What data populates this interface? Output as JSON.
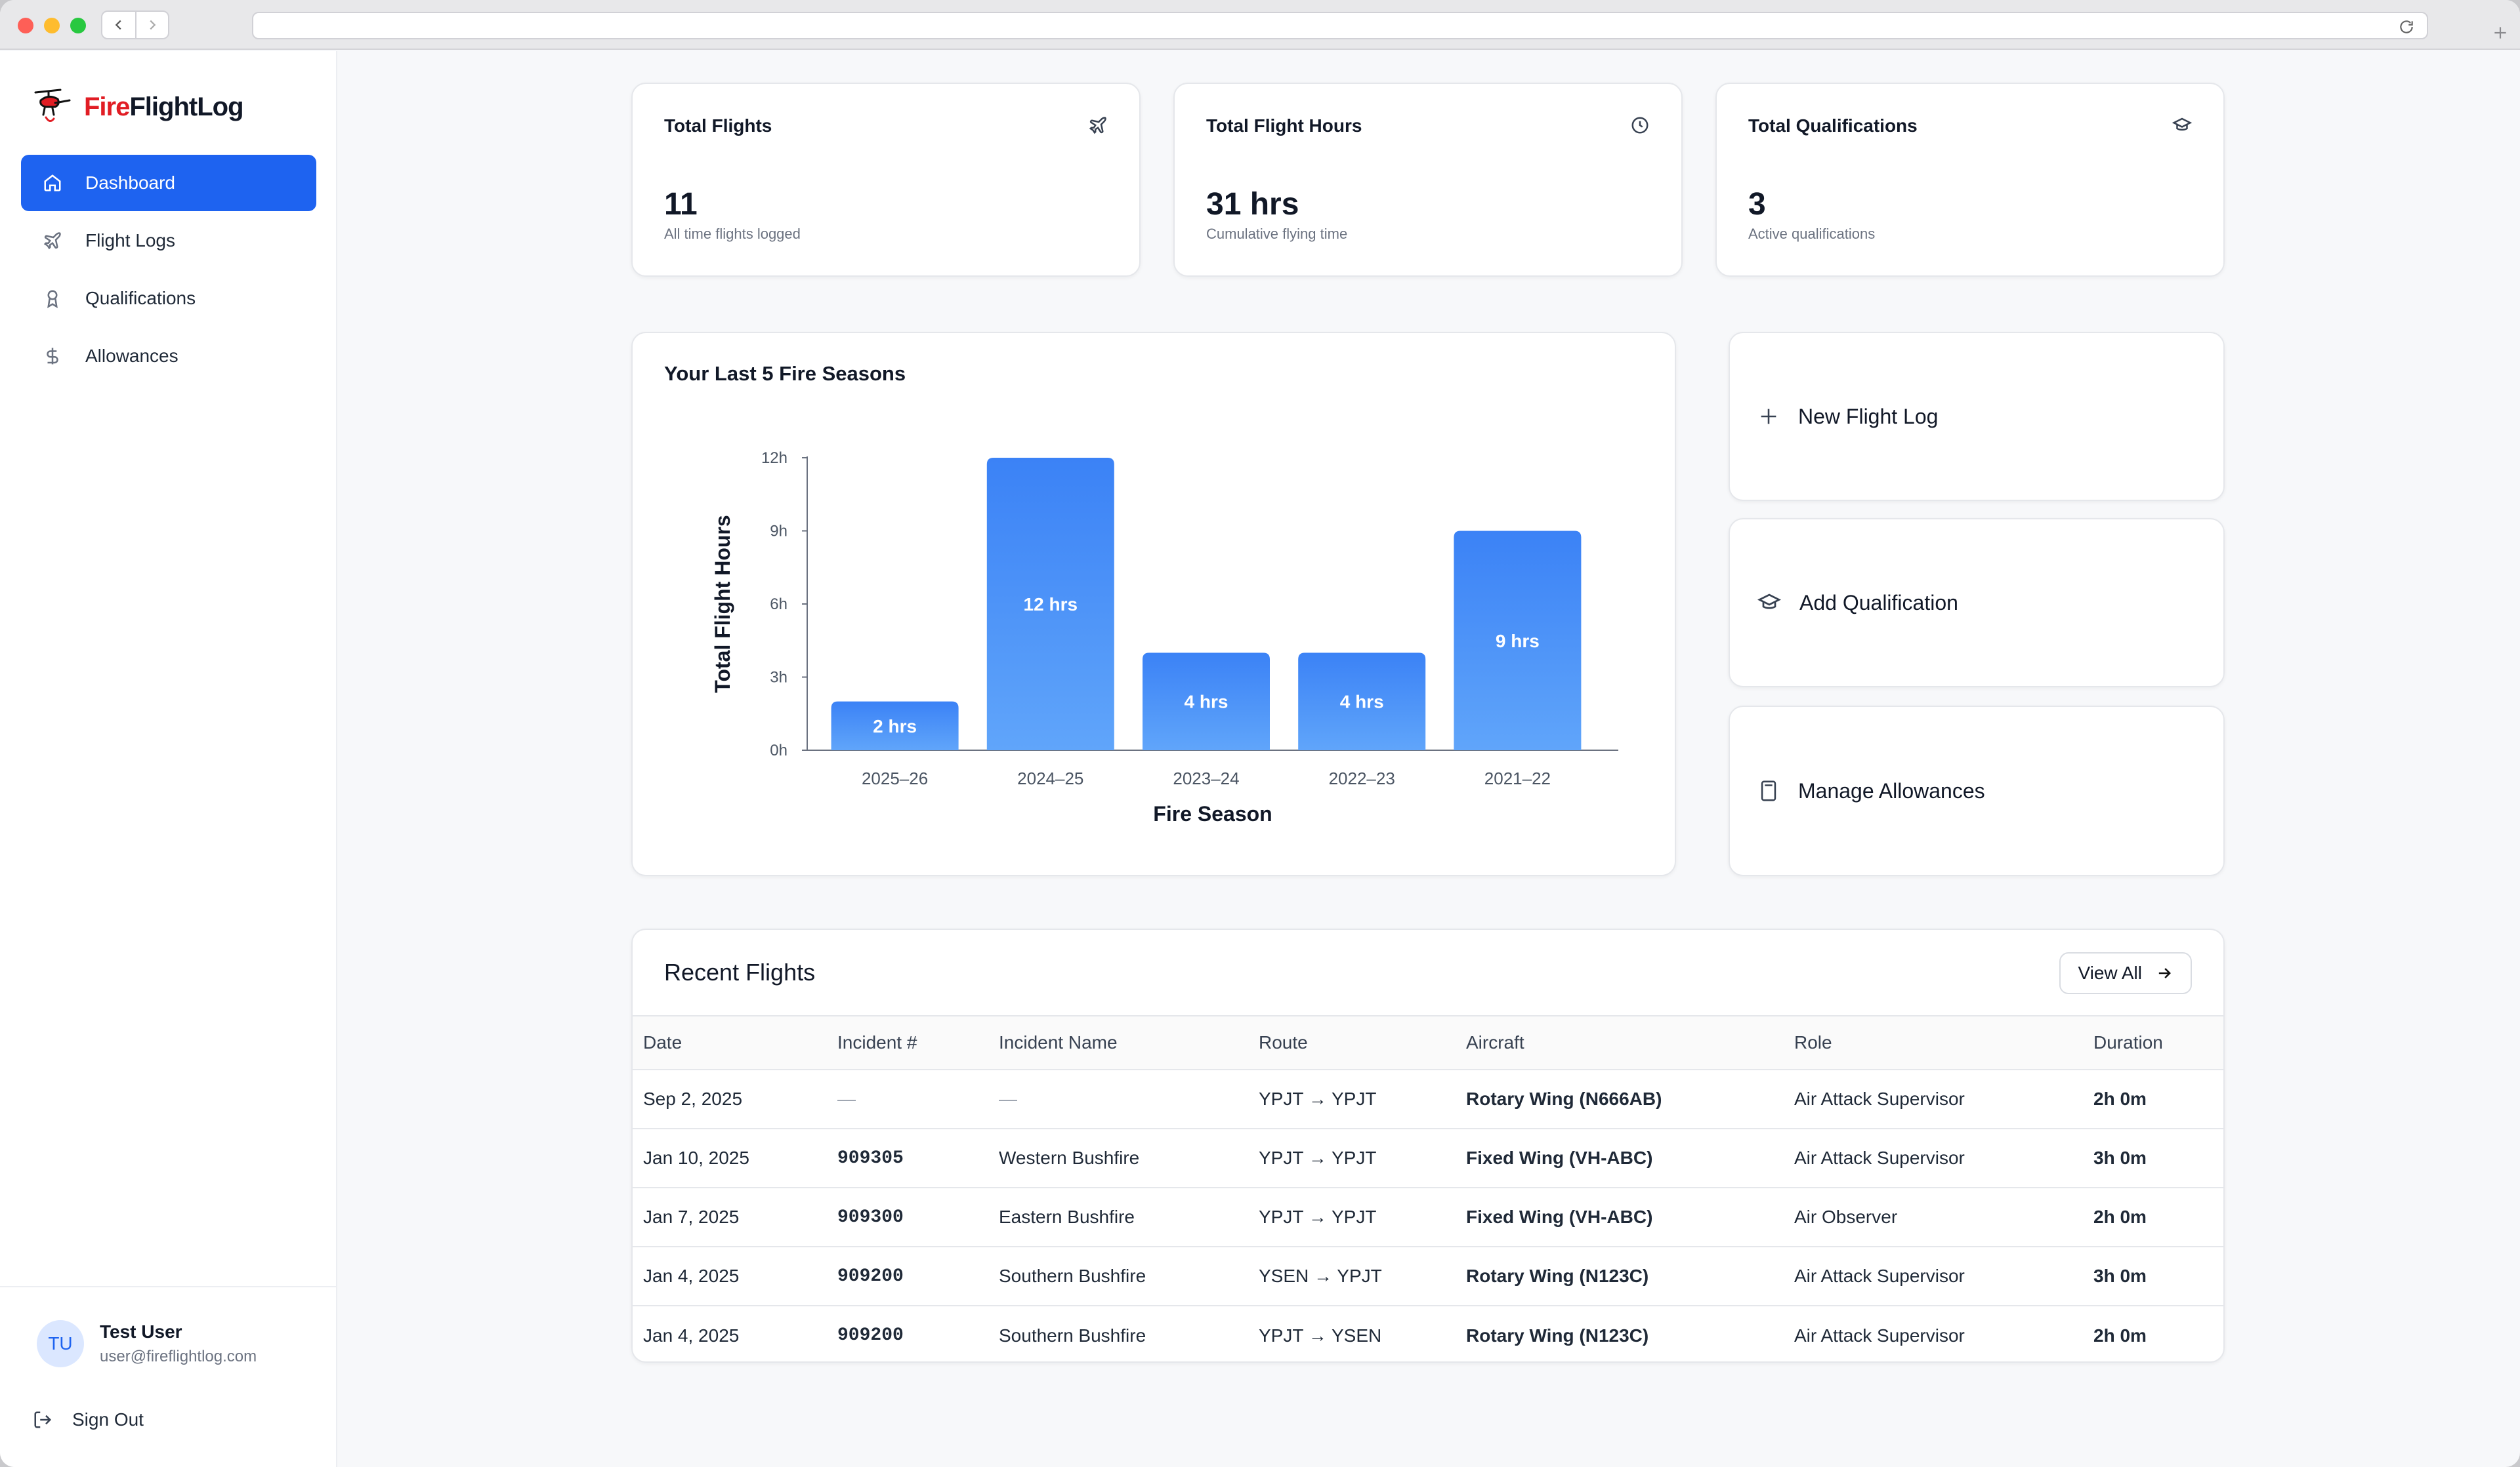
{
  "app": {
    "brand_fire": "Fire",
    "brand_rest": "FlightLog"
  },
  "sidebar": {
    "items": [
      {
        "label": "Dashboard",
        "icon": "home-icon",
        "active": true
      },
      {
        "label": "Flight Logs",
        "icon": "plane-icon"
      },
      {
        "label": "Qualifications",
        "icon": "award-icon"
      },
      {
        "label": "Allowances",
        "icon": "dollar-icon"
      }
    ],
    "user": {
      "initials": "TU",
      "name": "Test User",
      "email": "user@fireflightlog.com"
    },
    "sign_out": "Sign Out"
  },
  "stats": [
    {
      "label": "Total Flights",
      "value": "11",
      "sub": "All time flights logged",
      "icon": "plane-icon"
    },
    {
      "label": "Total Flight Hours",
      "value": "31 hrs",
      "sub": "Cumulative flying time",
      "icon": "clock-icon"
    },
    {
      "label": "Total Qualifications",
      "value": "3",
      "sub": "Active qualifications",
      "icon": "graduation-cap-icon"
    }
  ],
  "chart": {
    "title": "Your Last 5 Fire Seasons"
  },
  "chart_data": {
    "type": "bar",
    "categories": [
      "2025–26",
      "2024–25",
      "2023–24",
      "2022–23",
      "2021–22"
    ],
    "values": [
      2,
      12,
      4,
      4,
      9
    ],
    "data_labels": [
      "2 hrs",
      "12 hrs",
      "4 hrs",
      "4 hrs",
      "9 hrs"
    ],
    "xlabel": "Fire Season",
    "ylabel": "Total Flight Hours",
    "ylim": [
      0,
      12
    ],
    "yticks": [
      0,
      3,
      6,
      9,
      12
    ],
    "ytick_labels": [
      "0h",
      "3h",
      "6h",
      "9h",
      "12h"
    ],
    "bar_color": "#3b82f6",
    "grid": false
  },
  "actions": [
    {
      "label": "New Flight Log",
      "icon": "plus-icon"
    },
    {
      "label": "Add Qualification",
      "icon": "graduation-cap-icon"
    },
    {
      "label": "Manage Allowances",
      "icon": "calculator-icon"
    }
  ],
  "recent": {
    "title": "Recent Flights",
    "view_all": "View All",
    "columns": [
      "Date",
      "Incident #",
      "Incident Name",
      "Route",
      "Aircraft",
      "Role",
      "Duration"
    ],
    "rows": [
      [
        "Sep 2, 2025",
        "—",
        "—",
        "YPJT → YPJT",
        "Rotary Wing (N666AB)",
        "Air Attack Supervisor",
        "2h 0m"
      ],
      [
        "Jan 10, 2025",
        "909305",
        "Western Bushfire",
        "YPJT → YPJT",
        "Fixed Wing (VH-ABC)",
        "Air Attack Supervisor",
        "3h 0m"
      ],
      [
        "Jan 7, 2025",
        "909300",
        "Eastern Bushfire",
        "YPJT → YPJT",
        "Fixed Wing (VH-ABC)",
        "Air Observer",
        "2h 0m"
      ],
      [
        "Jan 4, 2025",
        "909200",
        "Southern Bushfire",
        "YSEN → YPJT",
        "Rotary Wing (N123C)",
        "Air Attack Supervisor",
        "3h 0m"
      ],
      [
        "Jan 4, 2025",
        "909200",
        "Southern Bushfire",
        "YPJT → YSEN",
        "Rotary Wing (N123C)",
        "Air Attack Supervisor",
        "2h 0m"
      ]
    ]
  }
}
